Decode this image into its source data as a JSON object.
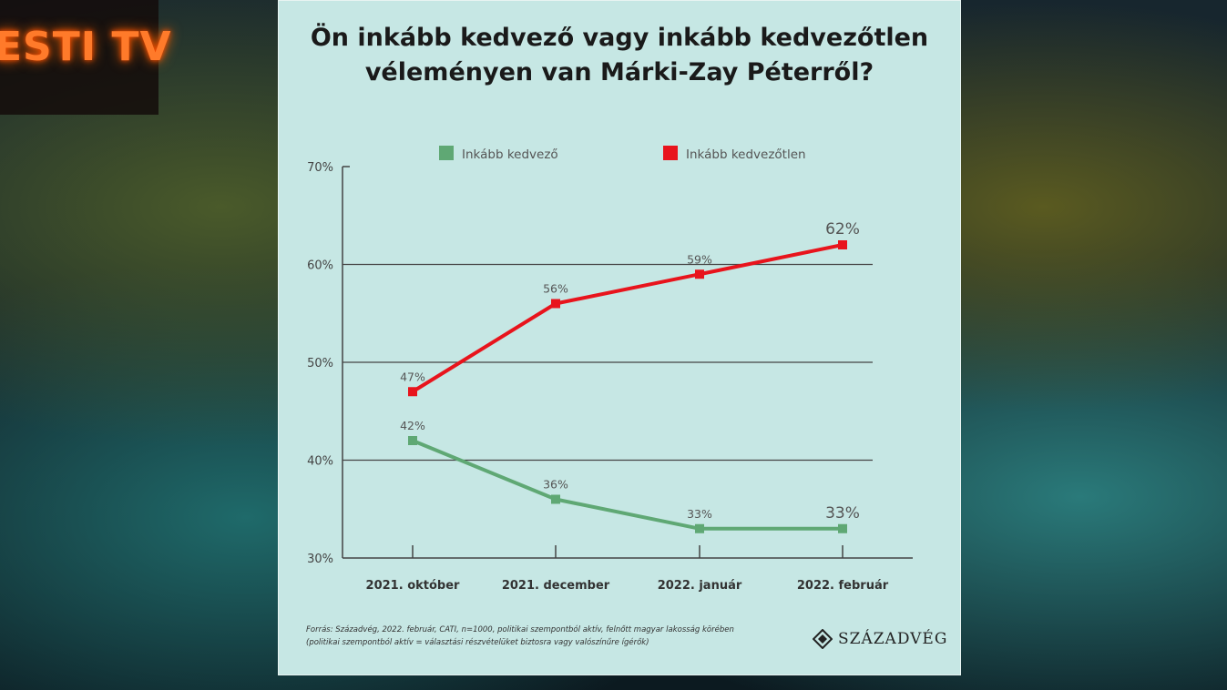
{
  "channel_logo": "ESTI TV",
  "card": {
    "title_line1": "Ön inkább kedvező vagy inkább kedvezőtlen",
    "title_line2": "véleményen van Márki-Zay Péterről?",
    "footnote_line1": "Forrás: Századvég, 2022. február, CATI, n=1000, politikai szempontból aktív, felnőtt magyar lakosság körében",
    "footnote_line2": "(politikai szempontból aktív = választási részvételüket biztosra vagy valószínűre ígérők)",
    "brand": "SZÁZADVÉG"
  },
  "chart_data": {
    "type": "line",
    "title": "Ön inkább kedvező vagy inkább kedvezőtlen véleményen van Márki-Zay Péterről?",
    "categories": [
      "2021. október",
      "2021. december",
      "2022. január",
      "2022. február"
    ],
    "ylim": [
      30,
      70
    ],
    "yticks": [
      30,
      40,
      50,
      60,
      70
    ],
    "ytick_labels": [
      "30%",
      "40%",
      "50%",
      "60%",
      "70%"
    ],
    "grid": true,
    "legend_position": "top",
    "series": [
      {
        "name": "Inkább kedvező",
        "color": "#5fa874",
        "values": [
          42,
          36,
          33,
          33
        ],
        "labels": [
          "42%",
          "36%",
          "33%",
          "33%"
        ]
      },
      {
        "name": "Inkább kedvezőtlen",
        "color": "#e8141c",
        "values": [
          47,
          56,
          59,
          62
        ],
        "labels": [
          "47%",
          "56%",
          "59%",
          "62%"
        ]
      }
    ]
  }
}
